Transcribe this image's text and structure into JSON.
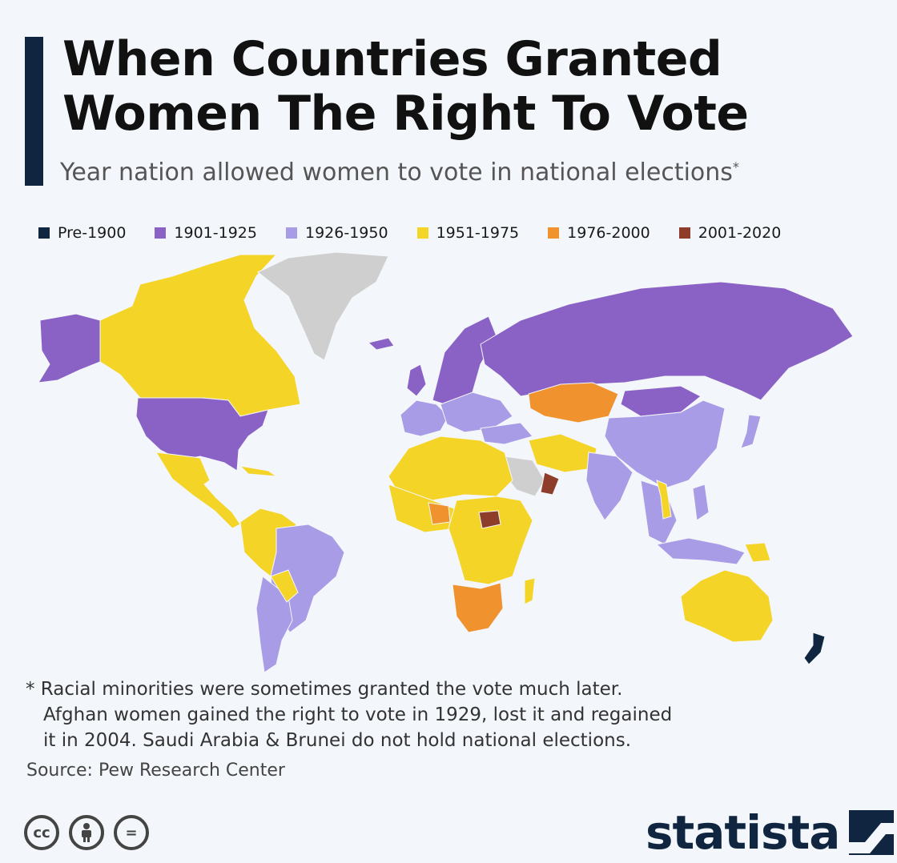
{
  "header": {
    "title_line1": "When Countries Granted",
    "title_line2": "Women The Right To Vote",
    "subtitle": "Year nation allowed women to vote in national elections",
    "subtitle_mark": "*"
  },
  "legend": [
    {
      "label": "Pre-1900",
      "color": "#0f2540"
    },
    {
      "label": "1901-1925",
      "color": "#8a62c6"
    },
    {
      "label": "1926-1950",
      "color": "#a99ce6"
    },
    {
      "label": "1951-1975",
      "color": "#f5d428"
    },
    {
      "label": "1976-2000",
      "color": "#f0922e"
    },
    {
      "label": "2001-2020",
      "color": "#8e3d2b"
    }
  ],
  "no_data_color": "#cfcfcf",
  "footnote": {
    "line1": "* Racial minorities were sometimes granted the vote much later.",
    "line2": "Afghan women gained the right to vote in 1929, lost it and regained",
    "line3": "it in 2004. Saudi Arabia & Brunei do not hold national elections."
  },
  "source": "Source: Pew Research Center",
  "license": {
    "cc": "cc",
    "by": "person-icon",
    "nd": "="
  },
  "brand": {
    "name": "statista"
  }
}
